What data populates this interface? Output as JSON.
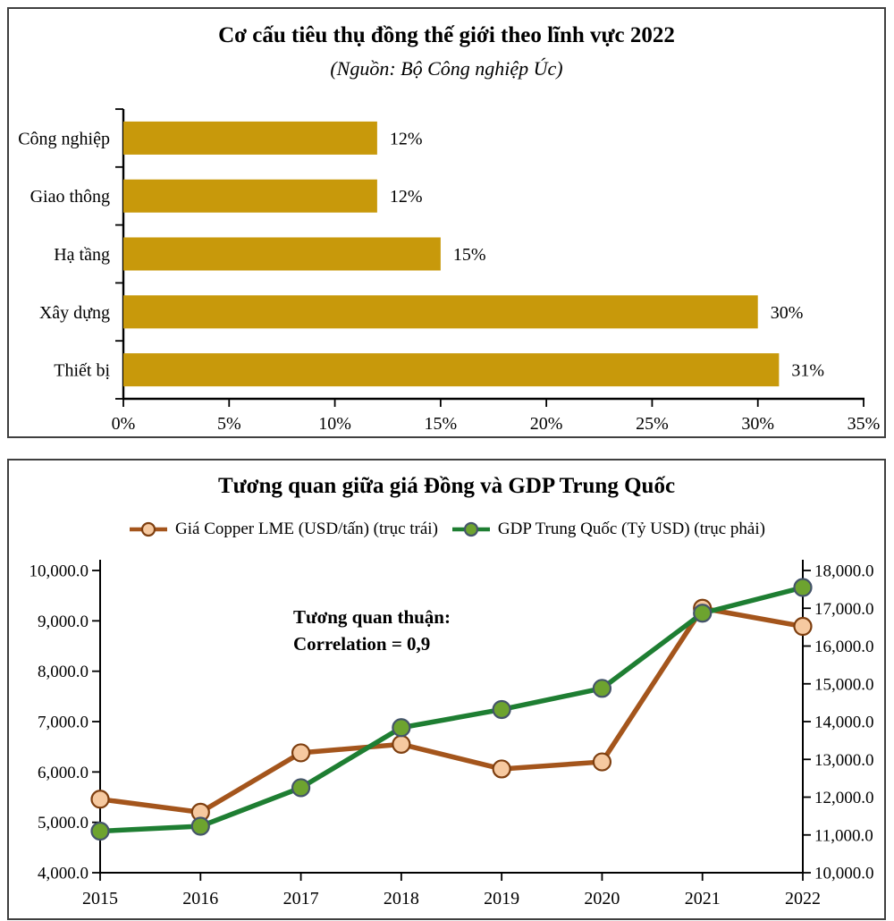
{
  "chart_data": [
    {
      "type": "bar",
      "orientation": "horizontal",
      "title": "Cơ cấu tiêu thụ đồng thế giới theo lĩnh vực 2022",
      "subtitle": "(Nguồn: Bộ Công nghiệp Úc)",
      "categories": [
        "Công nghiệp",
        "Giao thông",
        "Hạ tầng",
        "Xây dựng",
        "Thiết bị"
      ],
      "values": [
        12,
        12,
        15,
        30,
        31
      ],
      "data_labels": [
        "12%",
        "12%",
        "15%",
        "30%",
        "31%"
      ],
      "xlim": [
        0,
        35
      ],
      "x_tick_values": [
        0,
        5,
        10,
        15,
        20,
        25,
        30,
        35
      ],
      "x_tick_labels": [
        "0%",
        "5%",
        "10%",
        "15%",
        "20%",
        "25%",
        "30%",
        "35%"
      ],
      "bar_color": "#C8990B",
      "grid": false,
      "legend_position": "none"
    },
    {
      "type": "line",
      "title": "Tương quan giữa giá Đồng và GDP Trung Quốc",
      "x": [
        2015,
        2016,
        2017,
        2018,
        2019,
        2020,
        2021,
        2022
      ],
      "series": [
        {
          "name": "Giá Copper LME (USD/tấn) (trục trái)",
          "axis": "left",
          "values": [
            5460,
            5200,
            6380,
            6550,
            6060,
            6200,
            9250,
            8890
          ],
          "line_color": "#A4551C",
          "marker_fill": "#F6C9A0",
          "marker_stroke": "#7E3F10"
        },
        {
          "name": "GDP Trung Quốc (Tỷ USD) (trục phải)",
          "axis": "right",
          "values": [
            11100,
            11230,
            12250,
            13840,
            14320,
            14880,
            16870,
            17550
          ],
          "line_color": "#1E7E32",
          "marker_fill": "#6DA32F",
          "marker_stroke": "#44546A"
        }
      ],
      "left_axis": {
        "min": 4000,
        "max": 10000,
        "step": 1000
      },
      "right_axis": {
        "min": 10000,
        "max": 18000,
        "step": 1000
      },
      "annotation": {
        "line1": "Tương quan thuận:",
        "line2": "Correlation = 0,9"
      },
      "grid": false,
      "legend_position": "top"
    }
  ]
}
